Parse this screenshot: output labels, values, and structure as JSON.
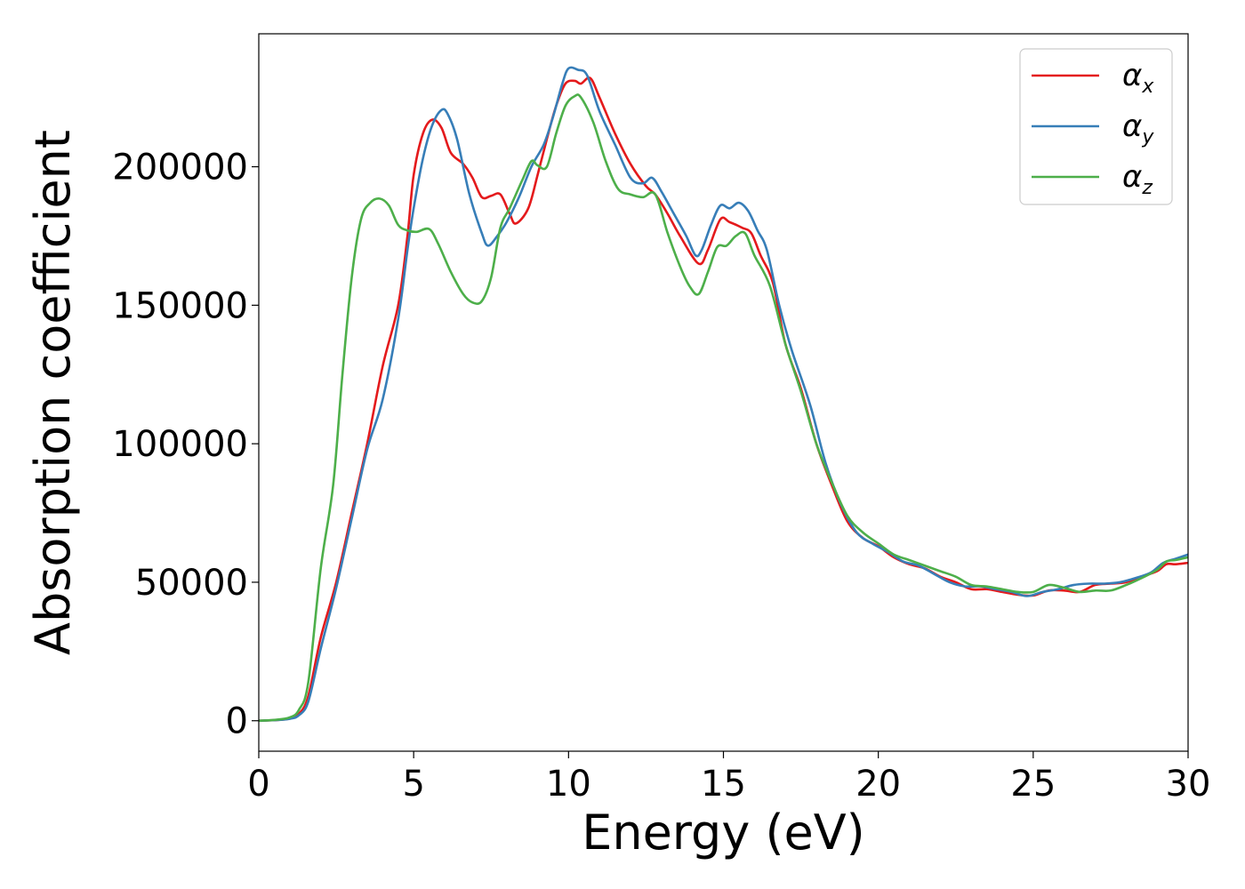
{
  "chart_data": {
    "type": "line",
    "xlabel": "Energy (eV)",
    "ylabel": "Absorption coefficient",
    "xlim": [
      0,
      30
    ],
    "ylim": [
      -11000,
      248000
    ],
    "xticks": [
      0,
      5,
      10,
      15,
      20,
      25,
      30
    ],
    "yticks": [
      0,
      50000,
      100000,
      150000,
      200000
    ],
    "grid": false,
    "legend_position": "top-right",
    "series": [
      {
        "name": "α_x",
        "legend_symbol": "α",
        "legend_sub": "x",
        "color": "#e41a1c",
        "points": [
          [
            0,
            0
          ],
          [
            0.5,
            200
          ],
          [
            1,
            800
          ],
          [
            1.3,
            2500
          ],
          [
            1.6,
            9000
          ],
          [
            2,
            30000
          ],
          [
            2.5,
            50000
          ],
          [
            3,
            75000
          ],
          [
            3.5,
            100000
          ],
          [
            4,
            128000
          ],
          [
            4.5,
            150000
          ],
          [
            4.8,
            175000
          ],
          [
            5,
            197000
          ],
          [
            5.3,
            212000
          ],
          [
            5.6,
            217000
          ],
          [
            5.9,
            214000
          ],
          [
            6.2,
            205000
          ],
          [
            6.6,
            201000
          ],
          [
            6.9,
            196000
          ],
          [
            7.2,
            189000
          ],
          [
            7.5,
            189500
          ],
          [
            7.8,
            190000
          ],
          [
            8.1,
            183000
          ],
          [
            8.3,
            179500
          ],
          [
            8.7,
            185000
          ],
          [
            9,
            197000
          ],
          [
            9.3,
            210000
          ],
          [
            9.6,
            222000
          ],
          [
            9.9,
            230000
          ],
          [
            10.2,
            231000
          ],
          [
            10.4,
            230000
          ],
          [
            10.7,
            232000
          ],
          [
            11,
            225000
          ],
          [
            11.5,
            212000
          ],
          [
            12,
            201000
          ],
          [
            12.5,
            193000
          ],
          [
            12.8,
            190000
          ],
          [
            13.2,
            183000
          ],
          [
            13.6,
            175000
          ],
          [
            14.2,
            165000
          ],
          [
            14.5,
            170000
          ],
          [
            14.9,
            181000
          ],
          [
            15.2,
            180000
          ],
          [
            15.6,
            178000
          ],
          [
            15.9,
            176000
          ],
          [
            16.2,
            168000
          ],
          [
            16.6,
            158000
          ],
          [
            17,
            136000
          ],
          [
            17.5,
            120000
          ],
          [
            18,
            100000
          ],
          [
            18.5,
            85000
          ],
          [
            19,
            72000
          ],
          [
            19.5,
            66000
          ],
          [
            20,
            63000
          ],
          [
            20.5,
            59000
          ],
          [
            21,
            56500
          ],
          [
            21.5,
            55000
          ],
          [
            22,
            52000
          ],
          [
            22.5,
            50000
          ],
          [
            23,
            47500
          ],
          [
            23.5,
            47500
          ],
          [
            24,
            46500
          ],
          [
            24.5,
            45500
          ],
          [
            25,
            45200
          ],
          [
            25.5,
            47000
          ],
          [
            26,
            47000
          ],
          [
            26.5,
            46500
          ],
          [
            27,
            49000
          ],
          [
            27.5,
            49500
          ],
          [
            28,
            50000
          ],
          [
            28.5,
            52000
          ],
          [
            29,
            54000
          ],
          [
            29.3,
            56500
          ],
          [
            29.6,
            56500
          ],
          [
            30,
            57000
          ]
        ]
      },
      {
        "name": "α_y",
        "legend_symbol": "α",
        "legend_sub": "y",
        "color": "#377eb8",
        "points": [
          [
            0,
            0
          ],
          [
            0.5,
            200
          ],
          [
            1,
            700
          ],
          [
            1.3,
            2000
          ],
          [
            1.6,
            7000
          ],
          [
            2,
            26000
          ],
          [
            2.5,
            48000
          ],
          [
            3,
            73000
          ],
          [
            3.5,
            98000
          ],
          [
            4,
            116000
          ],
          [
            4.5,
            145000
          ],
          [
            4.8,
            170000
          ],
          [
            5,
            185000
          ],
          [
            5.3,
            203000
          ],
          [
            5.6,
            215000
          ],
          [
            5.9,
            220500
          ],
          [
            6.1,
            219000
          ],
          [
            6.4,
            210000
          ],
          [
            6.8,
            190000
          ],
          [
            7.2,
            176000
          ],
          [
            7.4,
            171500
          ],
          [
            7.7,
            175000
          ],
          [
            8,
            180000
          ],
          [
            8.4,
            189000
          ],
          [
            8.8,
            200000
          ],
          [
            9.2,
            208000
          ],
          [
            9.5,
            218000
          ],
          [
            9.8,
            230000
          ],
          [
            10,
            235500
          ],
          [
            10.3,
            235000
          ],
          [
            10.6,
            233000
          ],
          [
            11,
            220000
          ],
          [
            11.5,
            208000
          ],
          [
            12,
            196000
          ],
          [
            12.4,
            194000
          ],
          [
            12.7,
            196000
          ],
          [
            13,
            191000
          ],
          [
            13.4,
            183000
          ],
          [
            13.8,
            175000
          ],
          [
            14.1,
            168000
          ],
          [
            14.3,
            170000
          ],
          [
            14.6,
            179000
          ],
          [
            14.9,
            186000
          ],
          [
            15.2,
            185000
          ],
          [
            15.5,
            187000
          ],
          [
            15.8,
            184000
          ],
          [
            16.1,
            177000
          ],
          [
            16.4,
            170000
          ],
          [
            16.8,
            150000
          ],
          [
            17.2,
            134000
          ],
          [
            17.8,
            114000
          ],
          [
            18.3,
            93000
          ],
          [
            18.8,
            78000
          ],
          [
            19.3,
            68000
          ],
          [
            19.8,
            64000
          ],
          [
            20.3,
            61000
          ],
          [
            20.8,
            57500
          ],
          [
            21.3,
            56000
          ],
          [
            21.8,
            53000
          ],
          [
            22.3,
            50000
          ],
          [
            22.8,
            48500
          ],
          [
            23.3,
            48500
          ],
          [
            23.8,
            47500
          ],
          [
            24.3,
            46500
          ],
          [
            24.8,
            45000
          ],
          [
            25.3,
            46500
          ],
          [
            25.8,
            47500
          ],
          [
            26.3,
            49000
          ],
          [
            26.8,
            49500
          ],
          [
            27.3,
            49500
          ],
          [
            27.8,
            50000
          ],
          [
            28.3,
            51500
          ],
          [
            28.8,
            53500
          ],
          [
            29.2,
            57000
          ],
          [
            29.6,
            58500
          ],
          [
            30,
            60000
          ]
        ]
      },
      {
        "name": "α_z",
        "legend_symbol": "α",
        "legend_sub": "z",
        "color": "#4daf4a",
        "points": [
          [
            0,
            0
          ],
          [
            0.5,
            300
          ],
          [
            1,
            1200
          ],
          [
            1.3,
            4000
          ],
          [
            1.6,
            14000
          ],
          [
            2,
            55000
          ],
          [
            2.4,
            85000
          ],
          [
            2.7,
            125000
          ],
          [
            3,
            160000
          ],
          [
            3.3,
            181000
          ],
          [
            3.6,
            187000
          ],
          [
            3.9,
            188500
          ],
          [
            4.2,
            186000
          ],
          [
            4.5,
            179000
          ],
          [
            4.8,
            177000
          ],
          [
            5.1,
            176500
          ],
          [
            5.5,
            177500
          ],
          [
            5.8,
            172000
          ],
          [
            6.2,
            162000
          ],
          [
            6.6,
            154000
          ],
          [
            6.9,
            151000
          ],
          [
            7.2,
            151500
          ],
          [
            7.5,
            160000
          ],
          [
            7.8,
            178000
          ],
          [
            8.1,
            185000
          ],
          [
            8.5,
            195000
          ],
          [
            8.8,
            202000
          ],
          [
            9,
            200500
          ],
          [
            9.3,
            200000
          ],
          [
            9.6,
            212000
          ],
          [
            9.9,
            222000
          ],
          [
            10.2,
            225500
          ],
          [
            10.4,
            225000
          ],
          [
            10.8,
            216000
          ],
          [
            11.2,
            202000
          ],
          [
            11.6,
            192000
          ],
          [
            12,
            190000
          ],
          [
            12.4,
            189000
          ],
          [
            12.8,
            190000
          ],
          [
            13.2,
            176000
          ],
          [
            13.6,
            164000
          ],
          [
            13.9,
            157000
          ],
          [
            14.2,
            154000
          ],
          [
            14.5,
            162000
          ],
          [
            14.8,
            171000
          ],
          [
            15.1,
            171500
          ],
          [
            15.4,
            175000
          ],
          [
            15.7,
            176000
          ],
          [
            16,
            168000
          ],
          [
            16.5,
            157000
          ],
          [
            17,
            136000
          ],
          [
            17.5,
            119000
          ],
          [
            18,
            100000
          ],
          [
            18.5,
            86000
          ],
          [
            19,
            74000
          ],
          [
            19.5,
            68000
          ],
          [
            20,
            64000
          ],
          [
            20.5,
            60000
          ],
          [
            21,
            58000
          ],
          [
            21.5,
            56000
          ],
          [
            22,
            54000
          ],
          [
            22.5,
            52000
          ],
          [
            23,
            49000
          ],
          [
            23.5,
            48500
          ],
          [
            24,
            47500
          ],
          [
            24.5,
            46500
          ],
          [
            25,
            46500
          ],
          [
            25.5,
            49000
          ],
          [
            26,
            48000
          ],
          [
            26.5,
            46500
          ],
          [
            27,
            47000
          ],
          [
            27.5,
            47000
          ],
          [
            28,
            49000
          ],
          [
            28.5,
            51500
          ],
          [
            29,
            54500
          ],
          [
            29.3,
            57500
          ],
          [
            29.6,
            58000
          ],
          [
            30,
            59000
          ]
        ]
      }
    ]
  }
}
